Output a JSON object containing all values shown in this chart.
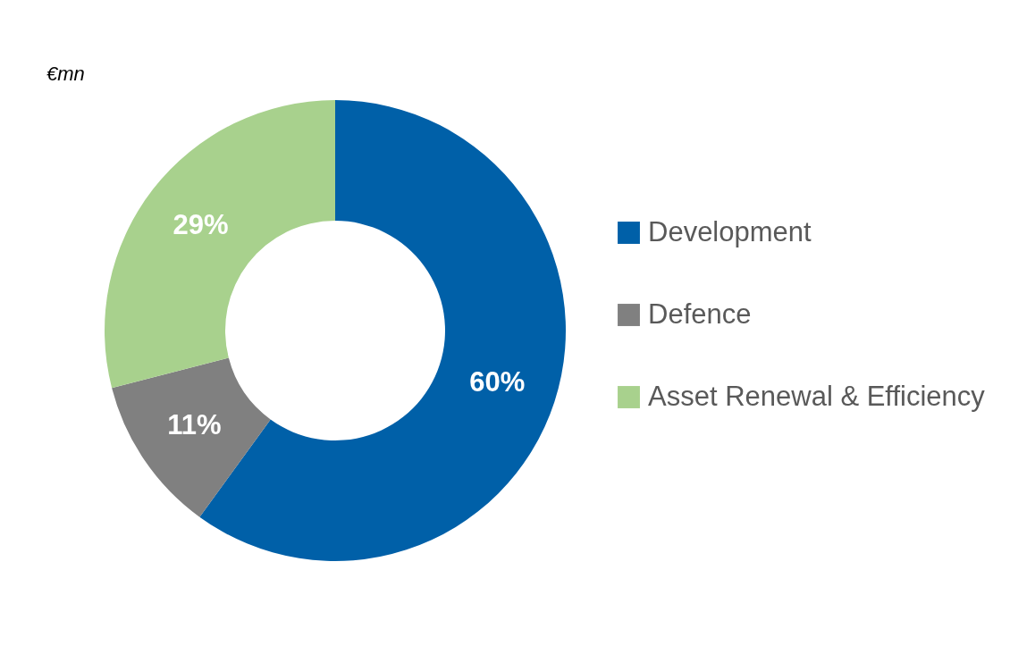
{
  "chart_data": {
    "type": "donut",
    "title": "€mn",
    "categories": [
      "Development",
      "Defence",
      "Asset Renewal & Efficiency"
    ],
    "values": [
      60,
      11,
      29
    ],
    "colors": [
      "#0060a8",
      "#808080",
      "#a8d18d"
    ],
    "value_labels": [
      "60%",
      "11%",
      "29%"
    ],
    "legend": "right"
  }
}
